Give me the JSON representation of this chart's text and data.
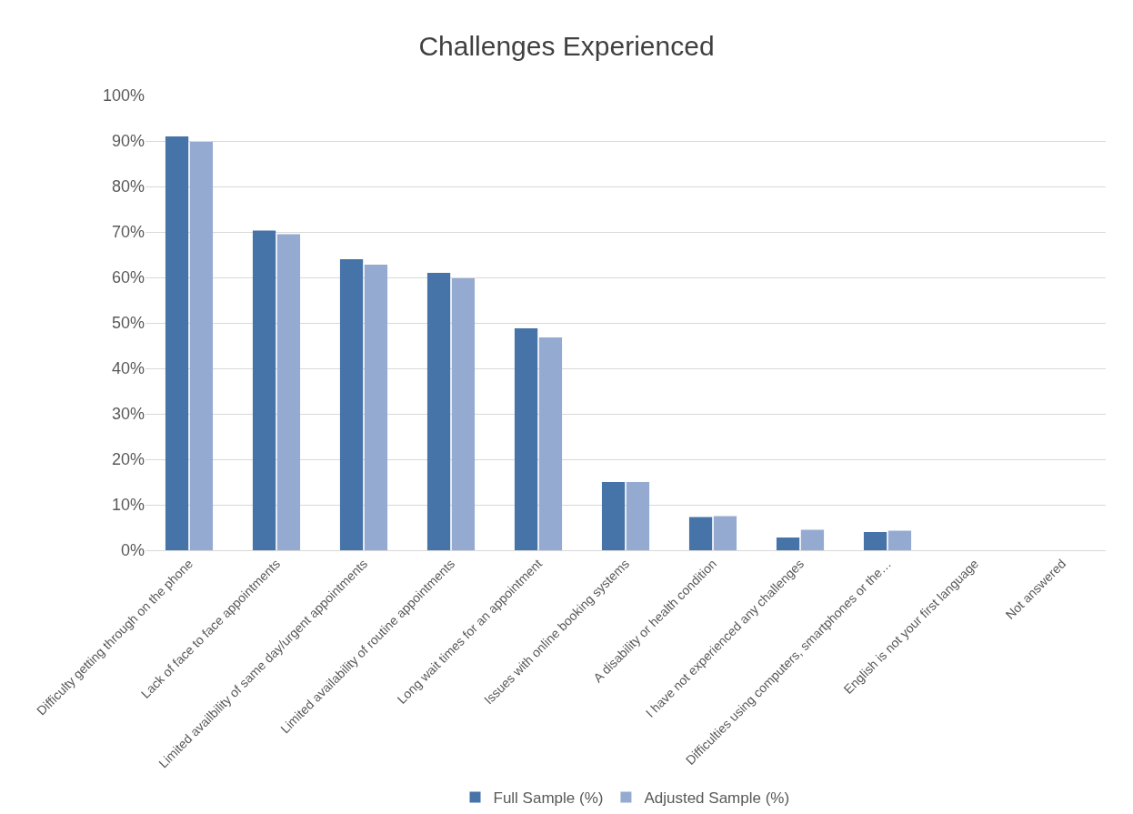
{
  "chart_data": {
    "type": "bar",
    "title": "Challenges Experienced",
    "categories": [
      "Difficulty getting through on the phone",
      "Lack of face to face appointments",
      "Limited availbility of same day/urgent appointments",
      "Limited availability of routine appointments",
      "Long wait times for an appointment",
      "Issues with online booking systems",
      "A disability or health condition",
      "I have not experienced any challenges",
      "Difficulties using computers, smartphones or the…",
      "English is not your first language",
      "Not answered"
    ],
    "series": [
      {
        "name": "Full Sample (%)",
        "color": "#4673a8",
        "values": [
          91,
          70.3,
          64,
          61,
          48.8,
          15,
          7.3,
          2.8,
          4,
          0,
          0
        ]
      },
      {
        "name": "Adjusted Sample (%)",
        "color": "#95aad1",
        "values": [
          89.8,
          69.5,
          62.8,
          59.8,
          46.8,
          15,
          7.5,
          4.5,
          4.3,
          0,
          0
        ]
      }
    ],
    "ylim": [
      0,
      100
    ],
    "yticks": [
      {
        "value": 0,
        "label": "0%"
      },
      {
        "value": 10,
        "label": "10%"
      },
      {
        "value": 20,
        "label": "20%"
      },
      {
        "value": 30,
        "label": "30%"
      },
      {
        "value": 40,
        "label": "40%"
      },
      {
        "value": 50,
        "label": "50%"
      },
      {
        "value": 60,
        "label": "60%"
      },
      {
        "value": 70,
        "label": "70%"
      },
      {
        "value": 80,
        "label": "80%"
      },
      {
        "value": 90,
        "label": "90%"
      },
      {
        "value": 100,
        "label": "100%"
      }
    ],
    "grid": "y",
    "legend": "bottom"
  }
}
